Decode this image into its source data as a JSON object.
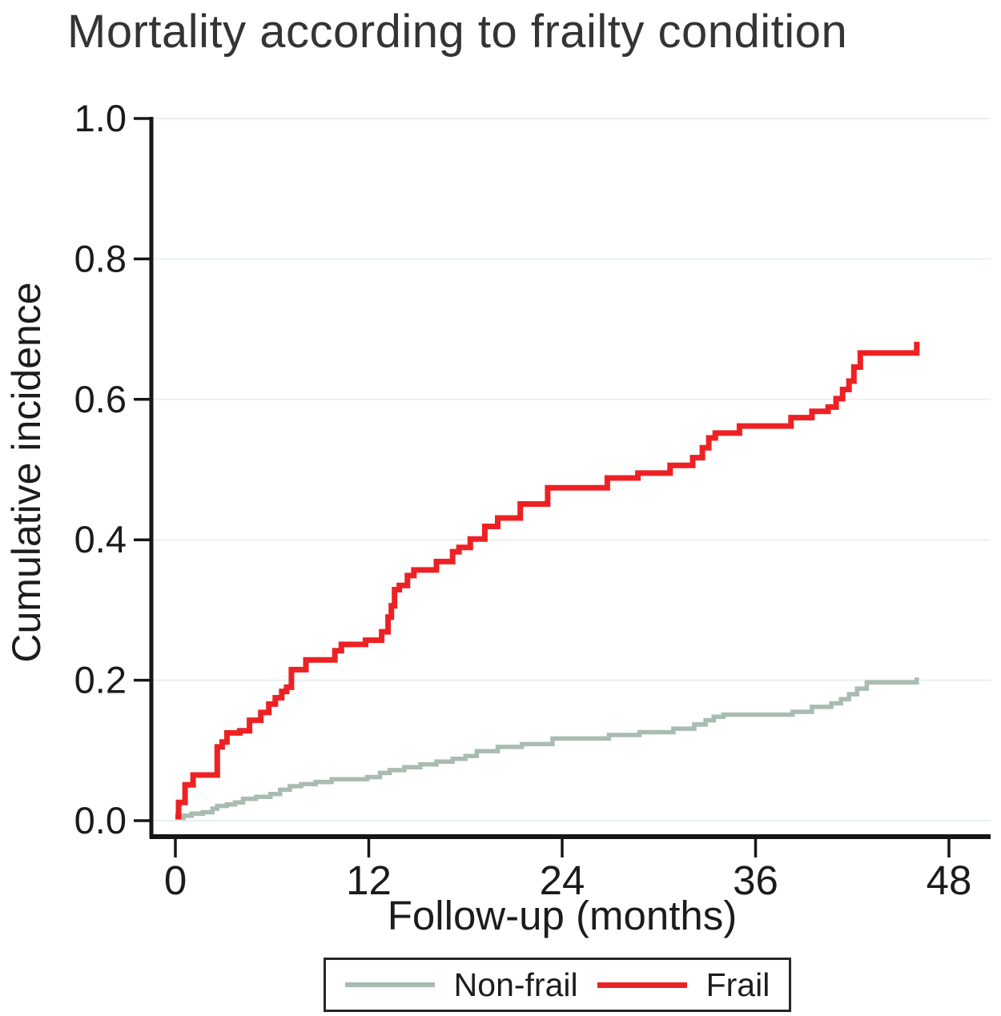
{
  "chart_data": {
    "type": "line",
    "step": true,
    "title": "Mortality according to frailty condition",
    "xlabel": "Follow-up (months)",
    "ylabel": "Cumulative incidence",
    "xlim": [
      0,
      48
    ],
    "ylim": [
      0.0,
      1.0
    ],
    "x_ticks": [
      {
        "value": 0,
        "label": "0"
      },
      {
        "value": 12,
        "label": "12"
      },
      {
        "value": 24,
        "label": "24"
      },
      {
        "value": 36,
        "label": "36"
      },
      {
        "value": 48,
        "label": "48"
      }
    ],
    "y_ticks": [
      {
        "value": 0.0,
        "label": "0.0"
      },
      {
        "value": 0.2,
        "label": "0.2"
      },
      {
        "value": 0.4,
        "label": "0.4"
      },
      {
        "value": 0.6,
        "label": "0.6"
      },
      {
        "value": 0.8,
        "label": "0.8"
      },
      {
        "value": 1.0,
        "label": "1.0"
      }
    ],
    "grid": "horizontal-only",
    "gridline_color": "#e8f0ed",
    "axis_color": "#161616",
    "tick_label_color": "#1b1b1b",
    "legend_position": "bottom-center",
    "series": [
      {
        "name": "Non-frail",
        "color": "#a8bcb2",
        "line_width": 5.5,
        "points": [
          [
            0,
            0.004
          ],
          [
            0.5,
            0.007
          ],
          [
            1.0,
            0.01
          ],
          [
            1.7,
            0.012
          ],
          [
            2.3,
            0.017
          ],
          [
            2.6,
            0.021
          ],
          [
            3.2,
            0.023
          ],
          [
            3.7,
            0.026
          ],
          [
            4.2,
            0.031
          ],
          [
            5.0,
            0.034
          ],
          [
            5.9,
            0.038
          ],
          [
            6.5,
            0.044
          ],
          [
            7.1,
            0.049
          ],
          [
            7.8,
            0.052
          ],
          [
            8.7,
            0.055
          ],
          [
            9.7,
            0.059
          ],
          [
            11.9,
            0.062
          ],
          [
            12.7,
            0.068
          ],
          [
            13.3,
            0.072
          ],
          [
            14.2,
            0.076
          ],
          [
            15.2,
            0.08
          ],
          [
            16.2,
            0.084
          ],
          [
            17.2,
            0.088
          ],
          [
            18.0,
            0.092
          ],
          [
            18.7,
            0.099
          ],
          [
            20.0,
            0.105
          ],
          [
            21.5,
            0.109
          ],
          [
            23.4,
            0.117
          ],
          [
            26.9,
            0.122
          ],
          [
            28.8,
            0.126
          ],
          [
            30.9,
            0.131
          ],
          [
            32.2,
            0.137
          ],
          [
            32.9,
            0.143
          ],
          [
            33.4,
            0.148
          ],
          [
            34.0,
            0.151
          ],
          [
            38.3,
            0.155
          ],
          [
            39.5,
            0.162
          ],
          [
            40.7,
            0.167
          ],
          [
            41.3,
            0.173
          ],
          [
            41.8,
            0.18
          ],
          [
            42.3,
            0.188
          ],
          [
            42.9,
            0.197
          ],
          [
            46.0,
            0.204
          ]
        ]
      },
      {
        "name": "Frail",
        "color": "#ed2124",
        "line_width": 7,
        "points": [
          [
            0,
            0.006
          ],
          [
            0.2,
            0.026
          ],
          [
            0.6,
            0.051
          ],
          [
            1.1,
            0.065
          ],
          [
            2.6,
            0.105
          ],
          [
            2.9,
            0.112
          ],
          [
            3.2,
            0.125
          ],
          [
            4.0,
            0.128
          ],
          [
            4.6,
            0.143
          ],
          [
            5.3,
            0.154
          ],
          [
            5.8,
            0.166
          ],
          [
            6.2,
            0.175
          ],
          [
            6.6,
            0.184
          ],
          [
            6.9,
            0.19
          ],
          [
            7.2,
            0.215
          ],
          [
            8.1,
            0.229
          ],
          [
            9.9,
            0.242
          ],
          [
            10.3,
            0.251
          ],
          [
            11.8,
            0.257
          ],
          [
            12.8,
            0.269
          ],
          [
            13.2,
            0.29
          ],
          [
            13.4,
            0.306
          ],
          [
            13.6,
            0.329
          ],
          [
            13.9,
            0.335
          ],
          [
            14.4,
            0.349
          ],
          [
            14.8,
            0.357
          ],
          [
            16.2,
            0.369
          ],
          [
            17.2,
            0.383
          ],
          [
            17.6,
            0.389
          ],
          [
            18.3,
            0.401
          ],
          [
            19.2,
            0.419
          ],
          [
            20.0,
            0.431
          ],
          [
            21.4,
            0.451
          ],
          [
            23.1,
            0.474
          ],
          [
            26.8,
            0.488
          ],
          [
            28.7,
            0.495
          ],
          [
            30.7,
            0.506
          ],
          [
            32.1,
            0.517
          ],
          [
            32.7,
            0.531
          ],
          [
            33.1,
            0.545
          ],
          [
            33.5,
            0.552
          ],
          [
            35.0,
            0.562
          ],
          [
            38.2,
            0.574
          ],
          [
            39.5,
            0.583
          ],
          [
            40.5,
            0.589
          ],
          [
            41.0,
            0.601
          ],
          [
            41.4,
            0.614
          ],
          [
            41.8,
            0.626
          ],
          [
            42.1,
            0.646
          ],
          [
            42.5,
            0.666
          ],
          [
            46.0,
            0.682
          ]
        ]
      }
    ]
  }
}
